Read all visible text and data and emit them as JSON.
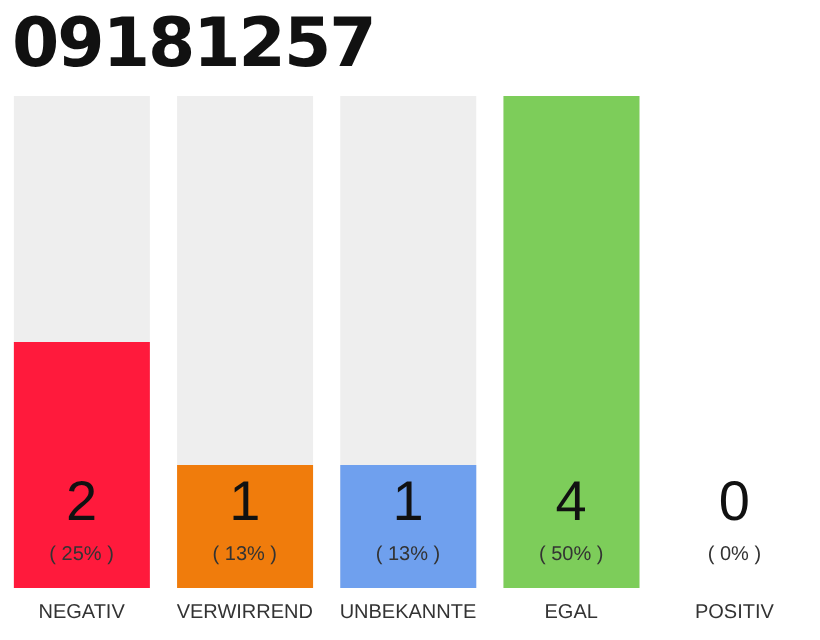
{
  "chart_data": {
    "type": "bar",
    "title": "09181257",
    "categories": [
      "NEGATIV",
      "VERWIRREND",
      "UNBEKANNTE",
      "EGAL",
      "POSITIV"
    ],
    "values": [
      2,
      1,
      1,
      4,
      0
    ],
    "colors": [
      "#ff1a3c",
      "#f07c0c",
      "#6fa0ee",
      "#7dcd5a",
      "#bbbbbb"
    ],
    "data_labels": true,
    "annotations": [
      "( 25% )",
      "( 13% )",
      "( 13% )",
      "( 50% )",
      "( 0% )"
    ],
    "grid": false,
    "legend": false
  }
}
